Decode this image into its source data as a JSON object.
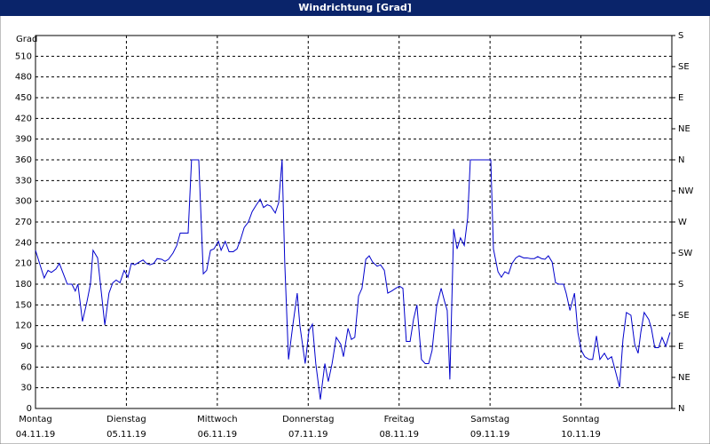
{
  "chart_data": {
    "type": "line",
    "title": "Windrichtung [Grad]",
    "y_label": "Grad",
    "xlim": [
      0,
      168
    ],
    "ylim": [
      0,
      540
    ],
    "y2lim": [
      0,
      540
    ],
    "xticks": [
      {
        "value": 0,
        "label": "Montag",
        "date": "04.11.19"
      },
      {
        "value": 24,
        "label": "Dienstag",
        "date": "05.11.19"
      },
      {
        "value": 48,
        "label": "Mittwoch",
        "date": "06.11.19"
      },
      {
        "value": 72,
        "label": "Donnerstag",
        "date": "07.11.19"
      },
      {
        "value": 96,
        "label": "Freitag",
        "date": "08.11.19"
      },
      {
        "value": 120,
        "label": "Samstag",
        "date": "09.11.19"
      },
      {
        "value": 144,
        "label": "Sonntag",
        "date": "10.11.19"
      }
    ],
    "yticks": [
      0,
      30,
      60,
      90,
      120,
      150,
      180,
      210,
      240,
      270,
      300,
      330,
      360,
      390,
      420,
      450,
      480,
      510
    ],
    "y2ticks": [
      {
        "value": 540,
        "label": "S"
      },
      {
        "value": 495,
        "label": "SE"
      },
      {
        "value": 450,
        "label": "E"
      },
      {
        "value": 405,
        "label": "NE"
      },
      {
        "value": 360,
        "label": "N"
      },
      {
        "value": 315,
        "label": "NW"
      },
      {
        "value": 270,
        "label": "W"
      },
      {
        "value": 225,
        "label": "SW"
      },
      {
        "value": 180,
        "label": "S"
      },
      {
        "value": 135,
        "label": "SE"
      },
      {
        "value": 90,
        "label": "E"
      },
      {
        "value": 45,
        "label": "NE"
      },
      {
        "value": 0,
        "label": "N"
      }
    ],
    "grid": true,
    "x": [
      0,
      1.2,
      2.3,
      3.3,
      4.2,
      5.4,
      6.3,
      7.5,
      8.4,
      9.6,
      10.5,
      11.2,
      12.4,
      13.6,
      14.5,
      15.2,
      16.4,
      17.6,
      18.3,
      19.4,
      20.4,
      21.3,
      22.3,
      23.4,
      24.4,
      25.3,
      26.2,
      27.4,
      28.4,
      29.3,
      30.2,
      31.2,
      32.1,
      33.3,
      34.2,
      35.1,
      36.3,
      37.3,
      38.2,
      39.4,
      40.3,
      41.2,
      42.4,
      43.1,
      44.3,
      45.2,
      46.2,
      47.1,
      48.3,
      49.0,
      50.1,
      51.1,
      52.2,
      53.2,
      54.1,
      55.1,
      56.2,
      57.2,
      58.1,
      59.3,
      60.2,
      61.2,
      62.1,
      63.3,
      64.2,
      65.1,
      65.8,
      66.8,
      67.9,
      69.1,
      69.8,
      71.2,
      72.2,
      73.1,
      74.0,
      75.2,
      76.4,
      77.3,
      78.3,
      79.4,
      80.6,
      81.3,
      82.5,
      83.4,
      84.3,
      85.3,
      86.2,
      87.2,
      88.1,
      89.0,
      90.2,
      91.1,
      92.1,
      93.0,
      94.0,
      95.1,
      96.1,
      97.0,
      97.9,
      98.9,
      99.8,
      100.7,
      101.9,
      102.9,
      103.8,
      104.7,
      105.9,
      107.1,
      108.0,
      108.7,
      109.4,
      110.4,
      111.3,
      112.2,
      113.2,
      114.1,
      114.8,
      116.0,
      117.2,
      118.1,
      119.0,
      120.2,
      120.9,
      122.1,
      123.0,
      123.9,
      124.9,
      125.8,
      126.8,
      127.7,
      128.9,
      129.8,
      130.7,
      131.7,
      132.6,
      133.6,
      134.5,
      135.4,
      136.4,
      137.3,
      138.2,
      139.4,
      140.1,
      141.1,
      142.3,
      143.2,
      144.1,
      145.0,
      146.2,
      147.1,
      148.1,
      149.0,
      150.2,
      151.1,
      152.1,
      153.2,
      154.2,
      155.1,
      156.0,
      157.2,
      158.2,
      159.1,
      159.8,
      160.7,
      161.9,
      162.6,
      163.5,
      164.5,
      165.4,
      166.4,
      167.5
    ],
    "series": [
      {
        "name": "Windrichtung",
        "color": "#0000cc",
        "values": [
          229,
          208,
          189,
          200,
          197,
          202,
          210,
          193,
          180,
          180,
          170,
          180,
          126,
          155,
          180,
          229,
          218,
          157,
          121,
          167,
          182,
          186,
          182,
          200,
          190,
          210,
          208,
          212,
          215,
          210,
          208,
          210,
          217,
          216,
          213,
          216,
          225,
          236,
          254,
          254,
          254,
          360,
          360,
          360,
          195,
          200,
          229,
          231,
          242,
          229,
          242,
          227,
          227,
          231,
          244,
          262,
          270,
          285,
          293,
          303,
          291,
          295,
          293,
          283,
          298,
          360,
          212,
          71,
          119,
          167,
          120,
          65,
          113,
          122,
          65,
          13,
          65,
          39,
          65,
          103,
          93,
          75,
          116,
          100,
          103,
          163,
          174,
          216,
          221,
          212,
          206,
          208,
          200,
          167,
          170,
          174,
          177,
          174,
          97,
          97,
          129,
          150,
          71,
          65,
          65,
          84,
          148,
          174,
          155,
          142,
          42,
          260,
          231,
          247,
          236,
          276,
          360,
          360,
          360,
          360,
          360,
          360,
          231,
          198,
          190,
          198,
          195,
          210,
          218,
          221,
          218,
          218,
          217,
          217,
          220,
          217,
          216,
          221,
          212,
          182,
          180,
          180,
          167,
          142,
          167,
          110,
          84,
          75,
          71,
          71,
          105,
          71,
          80,
          71,
          75,
          52,
          31,
          100,
          139,
          135,
          93,
          80,
          110,
          139,
          129,
          116,
          88,
          88,
          103,
          90,
          110
        ]
      }
    ]
  }
}
